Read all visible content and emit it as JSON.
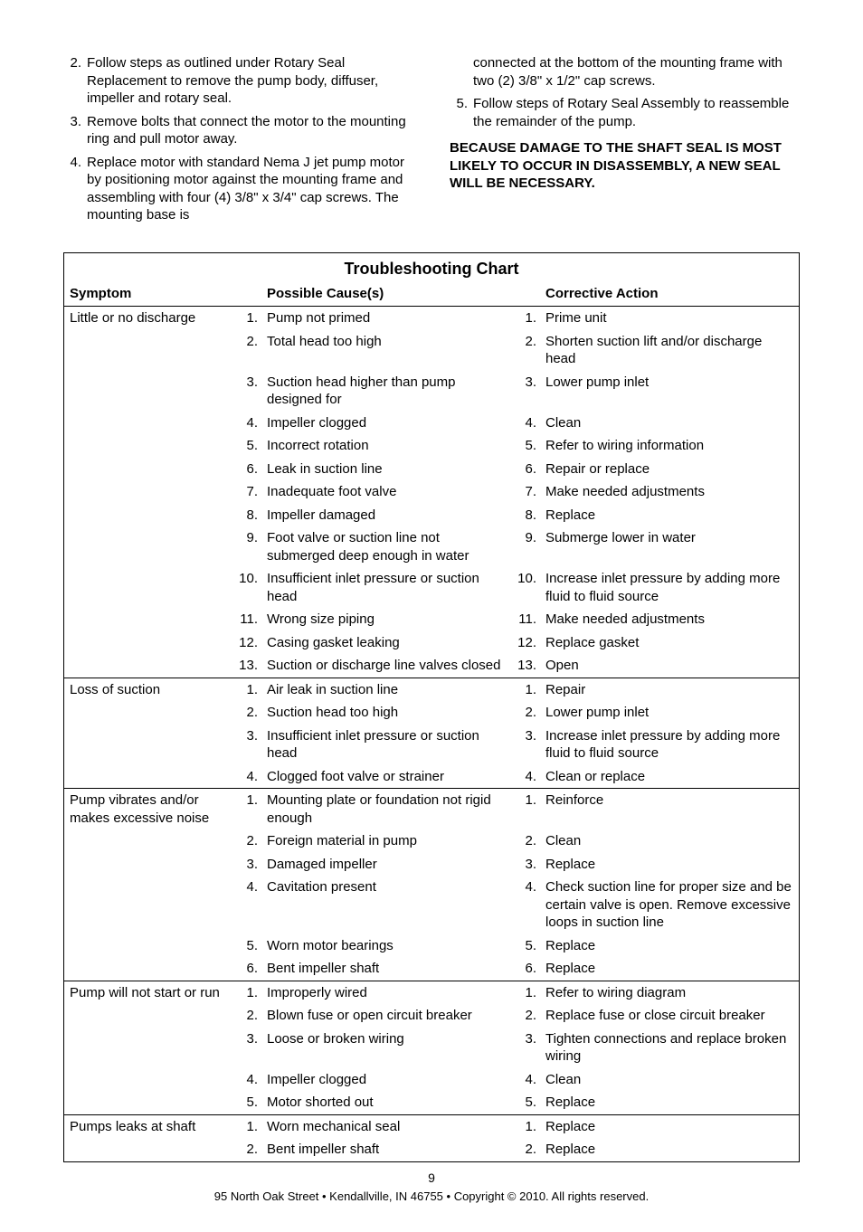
{
  "left_steps": [
    {
      "n": "2.",
      "text": "Follow steps as outlined under Rotary Seal Replacement to remove the pump body, diffuser, impeller and rotary seal."
    },
    {
      "n": "3.",
      "text": "Remove bolts that connect the motor to the mounting ring and pull motor away."
    },
    {
      "n": "4.",
      "text": "Replace motor with standard Nema J jet pump motor by positioning motor against the mounting frame and assembling with four (4) 3/8\" x 3/4\" cap screws. The mounting base is"
    }
  ],
  "right_continuation": "connected at the bottom of the mounting frame with two (2) 3/8\" x 1/2\" cap screws.",
  "right_steps": [
    {
      "n": "5.",
      "text": "Follow steps of Rotary Seal Assembly to reassemble the remainder of the pump."
    }
  ],
  "warning": "BECAUSE DAMAGE TO THE SHAFT SEAL IS MOST LIKELY TO OCCUR IN DISASSEMBLY, A NEW SEAL WILL BE NECESSARY.",
  "chart_title": "Troubleshooting Chart",
  "headers": {
    "symptom": "Symptom",
    "cause": "Possible Cause(s)",
    "action": "Corrective Action"
  },
  "sections": [
    {
      "symptom": "Little or no discharge",
      "rows": [
        {
          "n": "1.",
          "cause": "Pump not primed",
          "action": "Prime unit"
        },
        {
          "n": "2.",
          "cause": "Total head too high",
          "action": "Shorten suction lift and/or discharge head"
        },
        {
          "n": "3.",
          "cause": "Suction head higher than pump designed for",
          "action": "Lower pump inlet"
        },
        {
          "n": "4.",
          "cause": "Impeller clogged",
          "action": "Clean"
        },
        {
          "n": "5.",
          "cause": "Incorrect rotation",
          "action": "Refer to wiring information"
        },
        {
          "n": "6.",
          "cause": "Leak in suction line",
          "action": "Repair or replace"
        },
        {
          "n": "7.",
          "cause": "Inadequate foot valve",
          "action": "Make needed adjustments"
        },
        {
          "n": "8.",
          "cause": "Impeller damaged",
          "action": "Replace"
        },
        {
          "n": "9.",
          "cause": "Foot valve or suction line not submerged deep enough in water",
          "action": "Submerge lower in water"
        },
        {
          "n": "10.",
          "cause": "Insufficient inlet pressure or suction head",
          "action": "Increase inlet pressure by adding more fluid to fluid source"
        },
        {
          "n": "11.",
          "cause": "Wrong size piping",
          "action": "Make needed adjustments"
        },
        {
          "n": "12.",
          "cause": "Casing gasket leaking",
          "action": "Replace gasket"
        },
        {
          "n": "13.",
          "cause": "Suction or discharge line valves closed",
          "action": "Open"
        }
      ]
    },
    {
      "symptom": "Loss of suction",
      "rows": [
        {
          "n": "1.",
          "cause": "Air leak in suction line",
          "action": "Repair"
        },
        {
          "n": "2.",
          "cause": "Suction head too high",
          "action": "Lower pump inlet"
        },
        {
          "n": "3.",
          "cause": "Insufficient inlet pressure or suction head",
          "action": "Increase inlet pressure by adding more fluid to fluid source"
        },
        {
          "n": "4.",
          "cause": "Clogged foot valve or strainer",
          "action": "Clean or replace"
        }
      ]
    },
    {
      "symptom": "Pump vibrates and/or makes excessive noise",
      "rows": [
        {
          "n": "1.",
          "cause": "Mounting plate or foundation not rigid enough",
          "action": "Reinforce"
        },
        {
          "n": "2.",
          "cause": "Foreign material in pump",
          "action": "Clean"
        },
        {
          "n": "3.",
          "cause": "Damaged impeller",
          "action": "Replace"
        },
        {
          "n": "4.",
          "cause": "Cavitation present",
          "action": "Check suction line for proper size and be certain valve is open. Remove excessive loops in suction line"
        },
        {
          "n": "5.",
          "cause": "Worn motor bearings",
          "action": "Replace"
        },
        {
          "n": "6.",
          "cause": "Bent impeller shaft",
          "action": "Replace"
        }
      ]
    },
    {
      "symptom": "Pump will not start or run",
      "rows": [
        {
          "n": "1.",
          "cause": "Improperly wired",
          "action": "Refer to wiring diagram"
        },
        {
          "n": "2.",
          "cause": "Blown fuse or open circuit breaker",
          "action": "Replace fuse or close circuit breaker"
        },
        {
          "n": "3.",
          "cause": "Loose or broken wiring",
          "action": "Tighten connections and replace broken wiring"
        },
        {
          "n": "4.",
          "cause": "Impeller clogged",
          "action": "Clean"
        },
        {
          "n": "5.",
          "cause": "Motor shorted out",
          "action": "Replace"
        }
      ]
    },
    {
      "symptom": "Pumps leaks at shaft",
      "rows": [
        {
          "n": "1.",
          "cause": "Worn mechanical seal",
          "action": "Replace"
        },
        {
          "n": "2.",
          "cause": "Bent impeller shaft",
          "action": "Replace"
        }
      ]
    }
  ],
  "page_number": "9",
  "footer": "95 North Oak Street • Kendallville, IN 46755 • Copyright © 2010. All rights reserved."
}
